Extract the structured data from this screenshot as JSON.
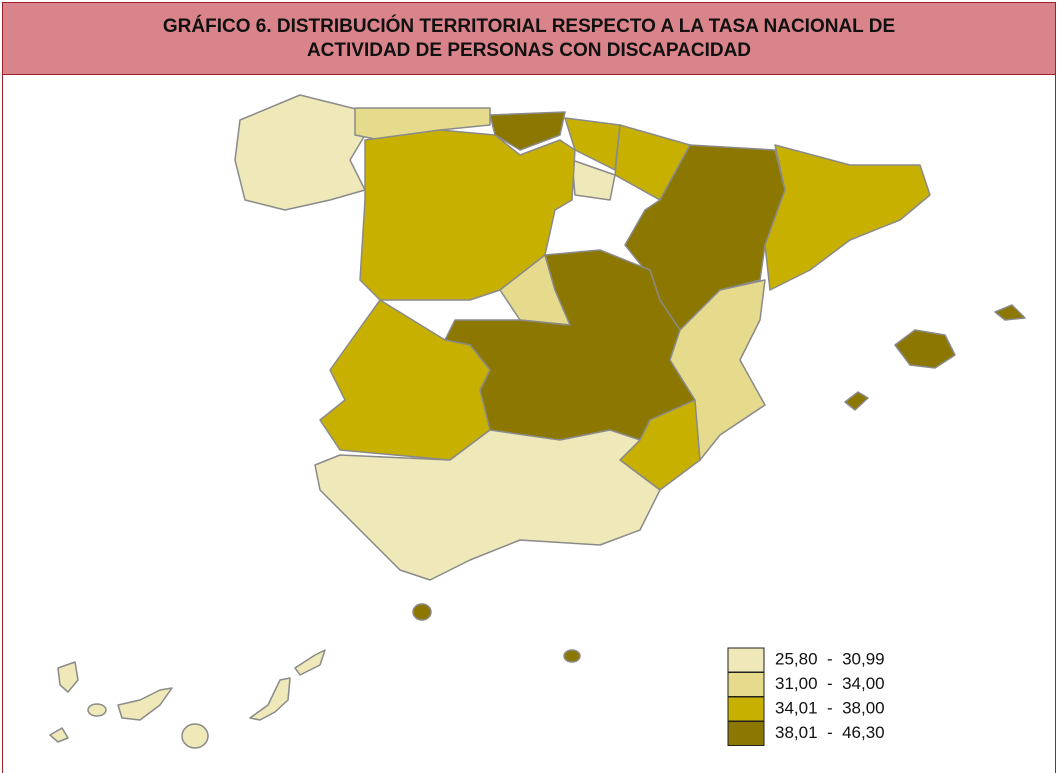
{
  "header": {
    "title": "GRÁFICO  6. DISTRIBUCIÓN TERRITORIAL RESPECTO A LA TASA NACIONAL DE ACTIVIDAD DE PERSONAS CON DISCAPACIDAD"
  },
  "legend": {
    "items": [
      {
        "label": "25,80  -  30,99",
        "color": "#efe8b8"
      },
      {
        "label": "31,00  -  34,00",
        "color": "#e6db8c"
      },
      {
        "label": "34,01  -  38,00",
        "color": "#c8b000"
      },
      {
        "label": "38,01  -  46,30",
        "color": "#8c7800"
      }
    ]
  }
}
